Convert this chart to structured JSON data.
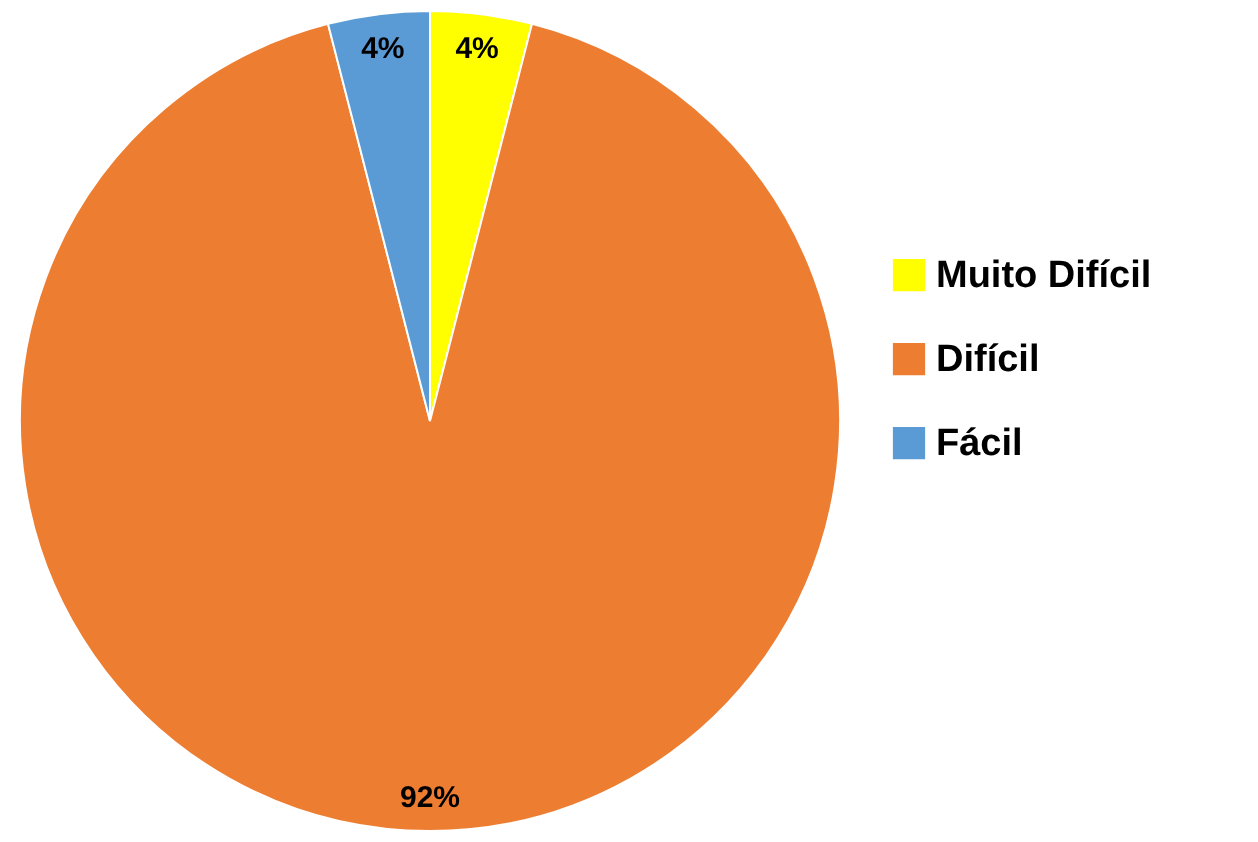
{
  "chart_data": {
    "type": "pie",
    "categories": [
      "Muito Difícil",
      "Difícil",
      "Fácil"
    ],
    "values": [
      4,
      92,
      4
    ],
    "colors": [
      "#ffff00",
      "#ed7d31",
      "#5b9bd5"
    ],
    "value_labels": [
      "4%",
      "92%",
      "4%"
    ],
    "legend": "right"
  }
}
